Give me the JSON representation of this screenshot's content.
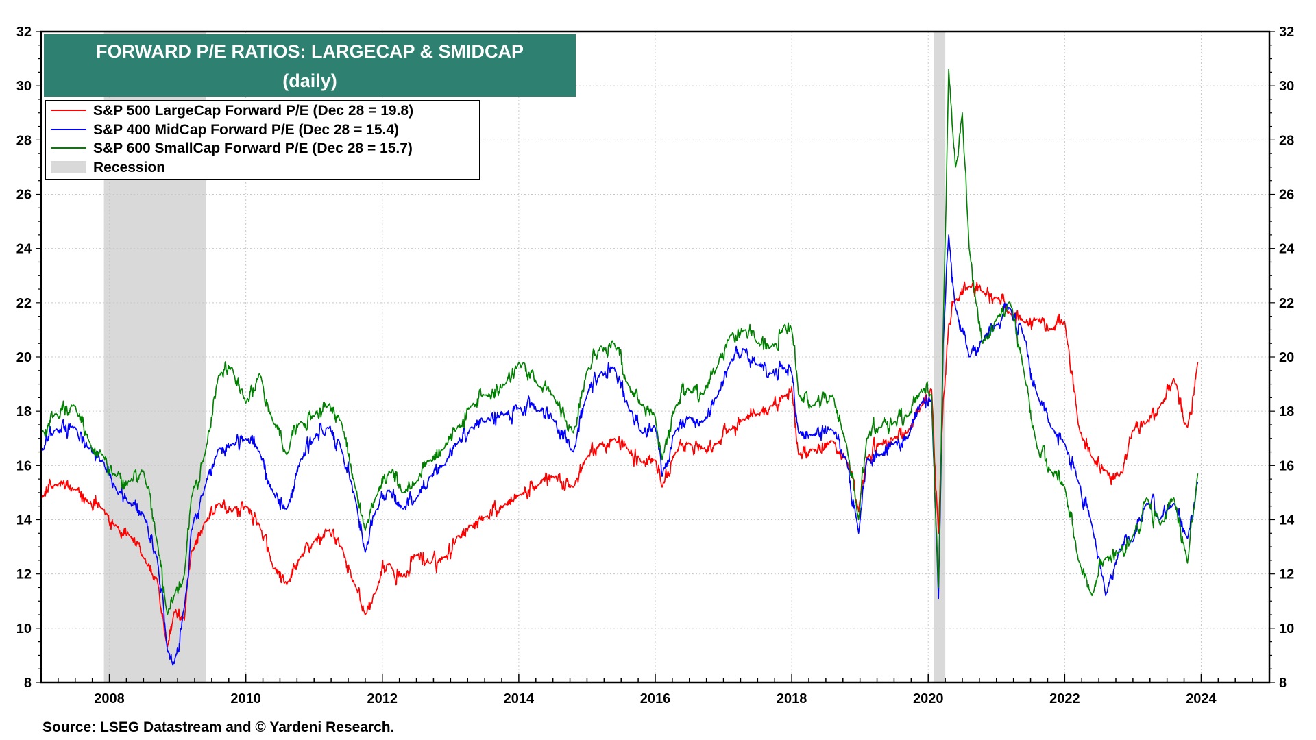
{
  "chart_data": {
    "type": "line",
    "title": "FORWARD P/E RATIOS: LARGECAP & SMIDCAP",
    "subtitle": "(daily)",
    "xlabel": "",
    "ylabel": "",
    "xlim": [
      2007.0,
      2025.0
    ],
    "ylim": [
      8,
      32
    ],
    "x_ticks": [
      2008,
      2010,
      2012,
      2014,
      2016,
      2018,
      2020,
      2022,
      2024
    ],
    "y_ticks": [
      8,
      10,
      12,
      14,
      16,
      18,
      20,
      22,
      24,
      26,
      28,
      30,
      32
    ],
    "grid": true,
    "legend_position": "top-left",
    "source": "Source: LSEG Datastream and © Yardeni Research.",
    "recessions": [
      {
        "label": "Recession",
        "start": 2007.92,
        "end": 2009.42
      },
      {
        "label": "Recession",
        "start": 2020.08,
        "end": 2020.25
      }
    ],
    "legend": {
      "recession_label": "Recession"
    },
    "series": [
      {
        "name": "S&P 500 LargeCap Forward P/E (Dec 28 = 19.8)",
        "color": "#ff0000",
        "x": [
          2007.0,
          2007.2,
          2007.5,
          2007.7,
          2007.9,
          2008.1,
          2008.3,
          2008.5,
          2008.7,
          2008.85,
          2008.95,
          2009.1,
          2009.2,
          2009.4,
          2009.6,
          2009.8,
          2010.0,
          2010.2,
          2010.4,
          2010.6,
          2010.8,
          2011.0,
          2011.2,
          2011.4,
          2011.6,
          2011.75,
          2011.9,
          2012.1,
          2012.3,
          2012.5,
          2012.7,
          2012.9,
          2013.1,
          2013.3,
          2013.5,
          2013.8,
          2014.0,
          2014.3,
          2014.5,
          2014.8,
          2015.0,
          2015.2,
          2015.4,
          2015.6,
          2015.8,
          2016.0,
          2016.1,
          2016.3,
          2016.5,
          2016.7,
          2016.9,
          2017.1,
          2017.3,
          2017.5,
          2017.7,
          2017.9,
          2018.0,
          2018.1,
          2018.3,
          2018.6,
          2018.8,
          2018.98,
          2019.1,
          2019.3,
          2019.5,
          2019.7,
          2019.9,
          2020.05,
          2020.15,
          2020.22,
          2020.3,
          2020.4,
          2020.6,
          2020.8,
          2021.0,
          2021.2,
          2021.4,
          2021.6,
          2021.8,
          2022.0,
          2022.2,
          2022.4,
          2022.6,
          2022.8,
          2023.0,
          2023.2,
          2023.4,
          2023.6,
          2023.8,
          2023.95
        ],
        "values": [
          14.8,
          15.3,
          15.1,
          14.6,
          14.4,
          13.8,
          13.4,
          12.6,
          11.8,
          9.3,
          10.6,
          10.3,
          12.8,
          13.9,
          14.6,
          14.3,
          14.5,
          13.8,
          12.2,
          11.6,
          12.6,
          13.2,
          13.6,
          13.0,
          11.6,
          10.5,
          11.3,
          12.4,
          11.9,
          12.7,
          12.4,
          12.6,
          13.4,
          13.8,
          14.1,
          14.6,
          14.9,
          15.3,
          15.6,
          15.2,
          16.3,
          16.8,
          17.0,
          16.6,
          16.1,
          16.2,
          15.2,
          16.5,
          16.8,
          16.6,
          16.8,
          17.3,
          17.7,
          17.9,
          18.2,
          18.6,
          18.9,
          16.4,
          16.6,
          16.9,
          16.2,
          14.3,
          16.3,
          16.8,
          17.0,
          17.2,
          18.2,
          18.8,
          13.5,
          18.4,
          21.2,
          22.1,
          22.6,
          22.4,
          22.2,
          21.6,
          21.3,
          21.4,
          21.0,
          21.3,
          17.5,
          16.3,
          15.8,
          15.6,
          17.3,
          17.6,
          18.2,
          19.2,
          17.4,
          19.8
        ]
      },
      {
        "name": "S&P 400 MidCap Forward P/E (Dec 28 = 15.4)",
        "color": "#0000ff",
        "x": [
          2007.0,
          2007.2,
          2007.5,
          2007.7,
          2007.9,
          2008.1,
          2008.3,
          2008.5,
          2008.7,
          2008.85,
          2008.95,
          2009.1,
          2009.2,
          2009.4,
          2009.6,
          2009.8,
          2010.0,
          2010.2,
          2010.4,
          2010.6,
          2010.8,
          2011.0,
          2011.2,
          2011.4,
          2011.6,
          2011.75,
          2011.9,
          2012.1,
          2012.3,
          2012.5,
          2012.7,
          2012.9,
          2013.1,
          2013.3,
          2013.5,
          2013.8,
          2014.0,
          2014.3,
          2014.5,
          2014.8,
          2015.0,
          2015.2,
          2015.4,
          2015.6,
          2015.8,
          2016.0,
          2016.1,
          2016.3,
          2016.5,
          2016.7,
          2016.9,
          2017.1,
          2017.3,
          2017.5,
          2017.7,
          2017.9,
          2018.0,
          2018.1,
          2018.3,
          2018.6,
          2018.8,
          2018.98,
          2019.1,
          2019.3,
          2019.5,
          2019.7,
          2019.9,
          2020.05,
          2020.15,
          2020.22,
          2020.3,
          2020.4,
          2020.6,
          2020.8,
          2021.0,
          2021.2,
          2021.4,
          2021.6,
          2021.8,
          2022.0,
          2022.2,
          2022.4,
          2022.6,
          2022.8,
          2023.0,
          2023.2,
          2023.4,
          2023.6,
          2023.8,
          2023.95
        ],
        "values": [
          16.5,
          17.3,
          17.4,
          16.6,
          16.2,
          15.1,
          14.6,
          14.2,
          12.6,
          9.2,
          8.7,
          10.8,
          13.6,
          15.2,
          16.6,
          16.8,
          17.0,
          16.5,
          15.0,
          14.4,
          16.2,
          17.0,
          17.4,
          16.6,
          14.8,
          12.8,
          14.3,
          15.1,
          14.4,
          14.8,
          15.6,
          16.0,
          16.8,
          17.4,
          17.6,
          17.9,
          18.1,
          18.0,
          17.7,
          16.5,
          18.6,
          19.4,
          19.6,
          18.2,
          17.2,
          17.4,
          15.6,
          17.3,
          17.8,
          17.6,
          18.5,
          19.8,
          20.3,
          19.7,
          19.4,
          19.6,
          19.4,
          17.2,
          17.1,
          17.3,
          16.2,
          13.5,
          16.2,
          16.4,
          16.8,
          17.0,
          18.3,
          18.4,
          11.1,
          20.5,
          24.5,
          21.8,
          20.0,
          20.6,
          21.2,
          21.8,
          20.8,
          18.6,
          17.4,
          16.8,
          15.4,
          13.8,
          11.2,
          12.9,
          13.2,
          14.6,
          14.0,
          14.6,
          13.3,
          15.4
        ]
      },
      {
        "name": "S&P 600 SmallCap Forward P/E (Dec 28 = 15.7)",
        "color": "#008000",
        "x": [
          2007.0,
          2007.2,
          2007.5,
          2007.7,
          2007.9,
          2008.1,
          2008.3,
          2008.5,
          2008.7,
          2008.85,
          2008.95,
          2009.1,
          2009.2,
          2009.4,
          2009.6,
          2009.8,
          2010.0,
          2010.2,
          2010.4,
          2010.6,
          2010.8,
          2011.0,
          2011.2,
          2011.4,
          2011.6,
          2011.75,
          2011.9,
          2012.1,
          2012.3,
          2012.5,
          2012.7,
          2012.9,
          2013.1,
          2013.3,
          2013.5,
          2013.8,
          2014.0,
          2014.3,
          2014.5,
          2014.8,
          2015.0,
          2015.2,
          2015.4,
          2015.6,
          2015.8,
          2016.0,
          2016.1,
          2016.3,
          2016.5,
          2016.7,
          2016.9,
          2017.1,
          2017.3,
          2017.5,
          2017.7,
          2017.9,
          2018.0,
          2018.1,
          2018.3,
          2018.6,
          2018.8,
          2018.98,
          2019.1,
          2019.3,
          2019.5,
          2019.7,
          2019.9,
          2020.05,
          2020.15,
          2020.22,
          2020.3,
          2020.4,
          2020.5,
          2020.6,
          2020.7,
          2020.8,
          2021.0,
          2021.2,
          2021.4,
          2021.6,
          2021.8,
          2022.0,
          2022.2,
          2022.4,
          2022.6,
          2022.8,
          2023.0,
          2023.2,
          2023.4,
          2023.6,
          2023.8,
          2023.95
        ],
        "values": [
          17.2,
          17.9,
          18.2,
          16.9,
          16.4,
          15.6,
          15.4,
          15.8,
          13.2,
          10.5,
          11.2,
          12.0,
          14.8,
          16.4,
          19.3,
          19.6,
          18.3,
          19.4,
          17.6,
          16.4,
          17.6,
          17.8,
          18.2,
          17.6,
          15.2,
          13.6,
          14.8,
          15.8,
          15.0,
          15.4,
          16.2,
          16.6,
          17.4,
          18.2,
          18.6,
          19.0,
          19.8,
          18.9,
          18.6,
          17.2,
          19.5,
          20.4,
          20.5,
          19.0,
          18.2,
          17.8,
          16.2,
          18.2,
          18.8,
          18.6,
          19.6,
          20.8,
          21.0,
          20.5,
          20.4,
          21.2,
          21.0,
          18.6,
          18.2,
          18.6,
          16.8,
          14.0,
          17.0,
          17.4,
          17.6,
          17.8,
          18.8,
          18.6,
          11.5,
          21.0,
          30.6,
          27.0,
          29.0,
          24.0,
          22.0,
          20.5,
          21.4,
          22.0,
          19.5,
          16.6,
          15.8,
          15.2,
          12.5,
          11.2,
          12.6,
          12.8,
          13.4,
          14.8,
          13.8,
          14.8,
          12.4,
          15.7
        ]
      }
    ]
  }
}
